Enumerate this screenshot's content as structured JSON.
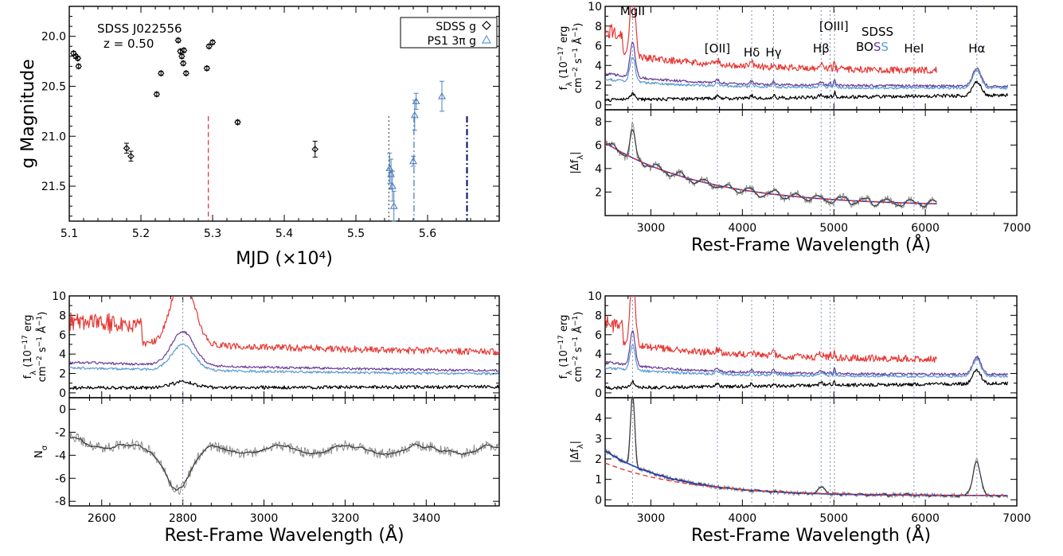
{
  "chart_data": [
    {
      "id": "lightcurve",
      "type": "scatter",
      "title": "",
      "xlabel": "MJD (×10⁴)",
      "ylabel": "g Magnitude",
      "xlim": [
        5.1,
        5.7
      ],
      "ylim": [
        21.85,
        19.7
      ],
      "xticks": [
        "5.1",
        "5.2",
        "5.3",
        "5.4",
        "5.5",
        "5.6"
      ],
      "yticks": [
        "20.0",
        "20.5",
        "21.0",
        "21.5"
      ],
      "annotation": [
        "SDSS J022556",
        "z = 0.50"
      ],
      "legend": [
        "SDSS g",
        "PS1 3π g"
      ],
      "legend_position": "top-right",
      "series": [
        {
          "name": "SDSS g",
          "color": "#000000",
          "marker": "diamond",
          "x": [
            5.106,
            5.109,
            5.112,
            5.113,
            5.18,
            5.186,
            5.222,
            5.228,
            5.252,
            5.255,
            5.257,
            5.259,
            5.26,
            5.263,
            5.292,
            5.295,
            5.3,
            5.335,
            5.443
          ],
          "y": [
            20.17,
            20.2,
            20.22,
            20.3,
            21.12,
            21.2,
            20.58,
            20.37,
            20.04,
            20.15,
            20.2,
            20.27,
            20.14,
            20.37,
            20.32,
            20.1,
            20.06,
            20.86,
            21.13
          ],
          "err": [
            0.02,
            0.02,
            0.02,
            0.02,
            0.05,
            0.05,
            0.02,
            0.02,
            0.02,
            0.02,
            0.02,
            0.02,
            0.02,
            0.02,
            0.02,
            0.02,
            0.02,
            0.02,
            0.08
          ]
        },
        {
          "name": "PS1 3π g",
          "color": "#4f81bd",
          "marker": "triangle",
          "x": [
            5.547,
            5.549,
            5.551,
            5.553,
            5.58,
            5.582,
            5.584,
            5.62
          ],
          "y": [
            21.32,
            21.38,
            21.5,
            21.7,
            21.25,
            20.79,
            20.65,
            20.6
          ],
          "err": [
            0.15,
            0.15,
            0.15,
            0.15,
            0.05,
            0.15,
            0.08,
            0.15
          ]
        }
      ],
      "vlines": [
        {
          "x": 5.294,
          "color": "#e53935",
          "style": "dashed"
        },
        {
          "x": 5.546,
          "color": "#555555",
          "style": "dotted"
        },
        {
          "x": 5.581,
          "color": "#4f81bd",
          "style": "dashdot"
        },
        {
          "x": 5.655,
          "color": "#1a1a6e",
          "style": "dashdot"
        }
      ]
    },
    {
      "id": "spectra-top",
      "type": "line",
      "xlabel": "Rest-Frame Wavelength (Å)",
      "ylabel_top": [
        "f",
        "λ",
        " (10",
        "−17",
        " erg",
        "cm",
        "−2",
        " s",
        "−1",
        " Å",
        "−1",
        ")"
      ],
      "ylabel_bottom": "|Δf_λ|",
      "xlim": [
        2500,
        7000
      ],
      "xticks": [
        "3000",
        "4000",
        "5000",
        "6000",
        "7000"
      ],
      "top_ylim": [
        -0.5,
        10
      ],
      "top_yticks": [
        "0",
        "2",
        "4",
        "6",
        "8",
        "10"
      ],
      "bottom_ylim": [
        0,
        9
      ],
      "bottom_yticks": [
        "2",
        "4",
        "6",
        "8"
      ],
      "line_labels": [
        "MgII",
        "[OII]",
        "Hδ",
        "Hγ",
        "Hβ",
        "[OIII]",
        "HeI",
        "Hα"
      ],
      "line_positions": [
        2800,
        3727,
        4102,
        4341,
        4861,
        4959,
        5007,
        5876,
        6563
      ],
      "legend": {
        "sdss": "SDSS",
        "boss_a": "BO",
        "boss_b": "S",
        "boss_c": "S"
      },
      "legend_colors": {
        "sdss": "#e53935",
        "boss_a": "#000000",
        "boss_b": "#6a3d9a",
        "boss_c": "#5b9bd5"
      },
      "series": [
        {
          "name": "SDSS",
          "color": "#e53935"
        },
        {
          "name": "BOSS epoch 1",
          "color": "#6a3d9a"
        },
        {
          "name": "BOSS epoch 2",
          "color": "#5b9bd5"
        },
        {
          "name": "BOSS epoch 3",
          "color": "#000000"
        }
      ]
    },
    {
      "id": "spectra-zoom",
      "type": "line",
      "xlabel": "Rest-Frame Wavelength (Å)",
      "ylabel_top": "f_λ (10^-17 erg cm^-2 s^-1 Å^-1)",
      "ylabel_bottom": "N_σ",
      "xlim": [
        2520,
        3580
      ],
      "xticks": [
        "2600",
        "2800",
        "3000",
        "3200",
        "3400"
      ],
      "top_ylim": [
        -0.5,
        10
      ],
      "top_yticks": [
        "0",
        "2",
        "4",
        "6",
        "8",
        "10"
      ],
      "bottom_ylim": [
        -8.4,
        1
      ],
      "bottom_yticks": [
        "-8",
        "-6",
        "-4",
        "-2",
        "0"
      ]
    },
    {
      "id": "spectra-bottom",
      "type": "line",
      "xlabel": "Rest-Frame Wavelength (Å)",
      "ylabel_top": "f_λ (10^-17 erg cm^-2 s^-1 Å^-1)",
      "ylabel_bottom": "|Δf_λ|",
      "xlim": [
        2500,
        7000
      ],
      "xticks": [
        "3000",
        "4000",
        "5000",
        "6000",
        "7000"
      ],
      "top_ylim": [
        -0.5,
        10
      ],
      "top_yticks": [
        "0",
        "2",
        "4",
        "6",
        "8",
        "10"
      ],
      "bottom_ylim": [
        -0.3,
        5
      ],
      "bottom_yticks": [
        "0",
        "1",
        "2",
        "3",
        "4"
      ]
    }
  ],
  "colors": {
    "sdss": "#e53935",
    "boss1": "#6a3d9a",
    "boss2": "#5b9bd5",
    "boss3": "#000000",
    "diff": "#8c8c8c",
    "diffsmooth": "#3a3a3a",
    "fit_blue": "#1f3fbf",
    "fit_red": "#e53935",
    "lines": "#8090b0"
  }
}
